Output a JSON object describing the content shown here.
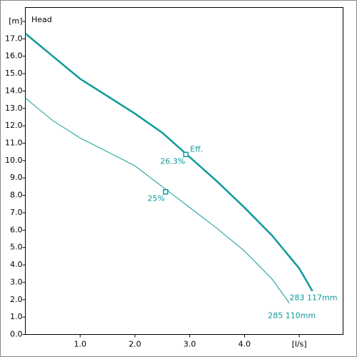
{
  "chart_data": {
    "type": "line",
    "title": "Head",
    "xlim": [
      0,
      5.8
    ],
    "ylim": [
      0,
      18.8
    ],
    "xticks": [
      {
        "value": 1,
        "label": "1.0"
      },
      {
        "value": 2,
        "label": "2.0"
      },
      {
        "value": 3,
        "label": "3.0"
      },
      {
        "value": 4,
        "label": "4.0"
      },
      {
        "value": 5,
        "label": "[l/s]"
      }
    ],
    "yticks": [
      {
        "value": 0,
        "label": "0.0"
      },
      {
        "value": 1,
        "label": "1.0"
      },
      {
        "value": 2,
        "label": "2.0"
      },
      {
        "value": 3,
        "label": "3.0"
      },
      {
        "value": 4,
        "label": "4.0"
      },
      {
        "value": 5,
        "label": "5.0"
      },
      {
        "value": 6,
        "label": "6.0"
      },
      {
        "value": 7,
        "label": "7.0"
      },
      {
        "value": 8,
        "label": "8.0"
      },
      {
        "value": 9,
        "label": "9.0"
      },
      {
        "value": 10,
        "label": "10.0"
      },
      {
        "value": 11,
        "label": "11.0"
      },
      {
        "value": 12,
        "label": "12.0"
      },
      {
        "value": 13,
        "label": "13.0"
      },
      {
        "value": 14,
        "label": "14.0"
      },
      {
        "value": 15,
        "label": "15.0"
      },
      {
        "value": 16,
        "label": "16.0"
      },
      {
        "value": 17,
        "label": "17.0"
      },
      {
        "value": 18,
        "label": "[m]"
      }
    ],
    "grid": false,
    "series": [
      {
        "name": "283 117mm",
        "color": "#0e9a9a",
        "x": [
          0,
          0.5,
          1,
          1.5,
          2,
          2.5,
          3,
          3.5,
          4,
          4.5,
          5,
          5.24
        ],
        "values": [
          17.3,
          16.0,
          14.7,
          13.7,
          12.7,
          11.6,
          10.2,
          8.8,
          7.3,
          5.7,
          3.8,
          2.5
        ]
      },
      {
        "name": "285 110mm",
        "color": "#0e9a9a",
        "x": [
          0,
          0.5,
          1,
          1.5,
          2,
          2.5,
          3,
          3.5,
          4,
          4.5,
          4.82
        ],
        "values": [
          13.6,
          12.3,
          11.3,
          10.5,
          9.7,
          8.5,
          7.3,
          6.1,
          4.8,
          3.2,
          1.8
        ]
      }
    ],
    "operating_points": [
      {
        "x": 2.93,
        "y": 10.35,
        "label": "26.3%"
      },
      {
        "x": 2.56,
        "y": 8.2,
        "label": "25%"
      }
    ],
    "annotation": "Eff."
  }
}
